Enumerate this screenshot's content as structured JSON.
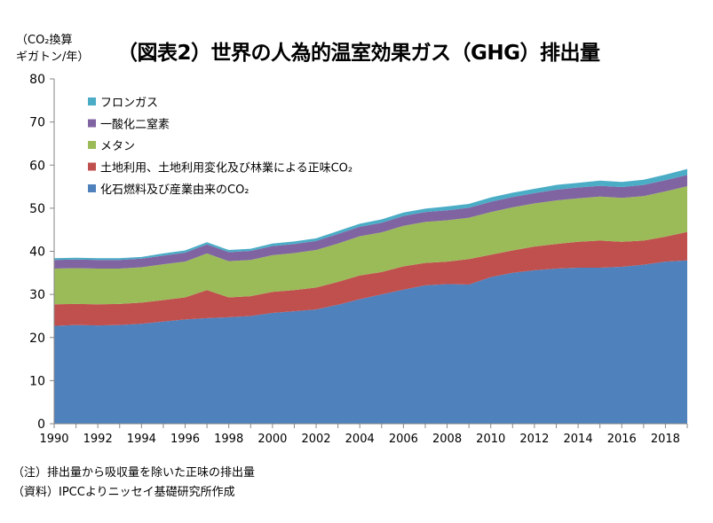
{
  "header": {
    "unit_line1": "（CO₂換算",
    "unit_line2": "ギガトン/年）",
    "title": "（図表2）世界の人為的温室効果ガス（GHG）排出量"
  },
  "notes": {
    "note": "（注）排出量から吸収量を除いた正味の排出量",
    "source": "（資料）IPCCよりニッセイ基礎研究所作成"
  },
  "chart_data": {
    "type": "area",
    "stacked": true,
    "x": [
      1990,
      1991,
      1992,
      1993,
      1994,
      1995,
      1996,
      1997,
      1998,
      1999,
      2000,
      2001,
      2002,
      2003,
      2004,
      2005,
      2006,
      2007,
      2008,
      2009,
      2010,
      2011,
      2012,
      2013,
      2014,
      2015,
      2016,
      2017,
      2018,
      2019
    ],
    "ylim": [
      0,
      80
    ],
    "yticks": [
      0,
      10,
      20,
      30,
      40,
      50,
      60,
      70,
      80
    ],
    "xticks": [
      1990,
      1992,
      1994,
      1996,
      1998,
      2000,
      2002,
      2004,
      2006,
      2008,
      2010,
      2012,
      2014,
      2016,
      2018
    ],
    "grid": false,
    "legend_position": "top-left",
    "series": [
      {
        "name": "化石燃料及び産業由来のCO₂",
        "color": "#4f81bd",
        "values": [
          22.7,
          22.9,
          22.8,
          22.9,
          23.2,
          23.7,
          24.2,
          24.5,
          24.7,
          25.0,
          25.7,
          26.1,
          26.5,
          27.6,
          28.9,
          30.0,
          31.1,
          32.1,
          32.4,
          32.3,
          34.0,
          35.0,
          35.6,
          36.0,
          36.2,
          36.2,
          36.4,
          36.9,
          37.6,
          37.9
        ]
      },
      {
        "name": "土地利用、土地利用変化及び林業による正味CO₂",
        "color": "#c0504d",
        "values": [
          5.0,
          4.9,
          4.9,
          4.9,
          4.9,
          5.0,
          5.1,
          6.5,
          4.6,
          4.6,
          4.9,
          4.9,
          5.1,
          5.3,
          5.5,
          5.2,
          5.4,
          5.2,
          5.2,
          5.9,
          5.2,
          5.2,
          5.5,
          5.7,
          6.0,
          6.3,
          5.8,
          5.6,
          5.8,
          6.6
        ]
      },
      {
        "name": "メタン",
        "color": "#9bbb59",
        "values": [
          8.3,
          8.3,
          8.3,
          8.2,
          8.2,
          8.3,
          8.3,
          8.5,
          8.4,
          8.4,
          8.5,
          8.6,
          8.7,
          8.9,
          9.1,
          9.2,
          9.4,
          9.5,
          9.6,
          9.6,
          9.9,
          10.0,
          10.0,
          10.1,
          10.1,
          10.2,
          10.2,
          10.3,
          10.5,
          10.6
        ]
      },
      {
        "name": "一酸化二窒素",
        "color": "#8064a2",
        "values": [
          2.0,
          2.0,
          2.0,
          2.0,
          2.0,
          2.0,
          2.1,
          2.1,
          2.1,
          2.1,
          2.1,
          2.1,
          2.1,
          2.2,
          2.2,
          2.2,
          2.3,
          2.3,
          2.3,
          2.3,
          2.4,
          2.4,
          2.4,
          2.5,
          2.5,
          2.5,
          2.5,
          2.6,
          2.6,
          2.6
        ]
      },
      {
        "name": "フロンガス",
        "color": "#4bacc6",
        "values": [
          0.4,
          0.4,
          0.4,
          0.4,
          0.4,
          0.5,
          0.5,
          0.5,
          0.5,
          0.5,
          0.6,
          0.6,
          0.6,
          0.7,
          0.7,
          0.8,
          0.8,
          0.8,
          0.9,
          0.9,
          1.0,
          1.0,
          1.0,
          1.1,
          1.1,
          1.2,
          1.2,
          1.2,
          1.3,
          1.4
        ]
      }
    ],
    "legend_order": [
      "フロンガス",
      "一酸化二窒素",
      "メタン",
      "土地利用、土地利用変化及び林業による正味CO₂",
      "化石燃料及び産業由来のCO₂"
    ]
  }
}
